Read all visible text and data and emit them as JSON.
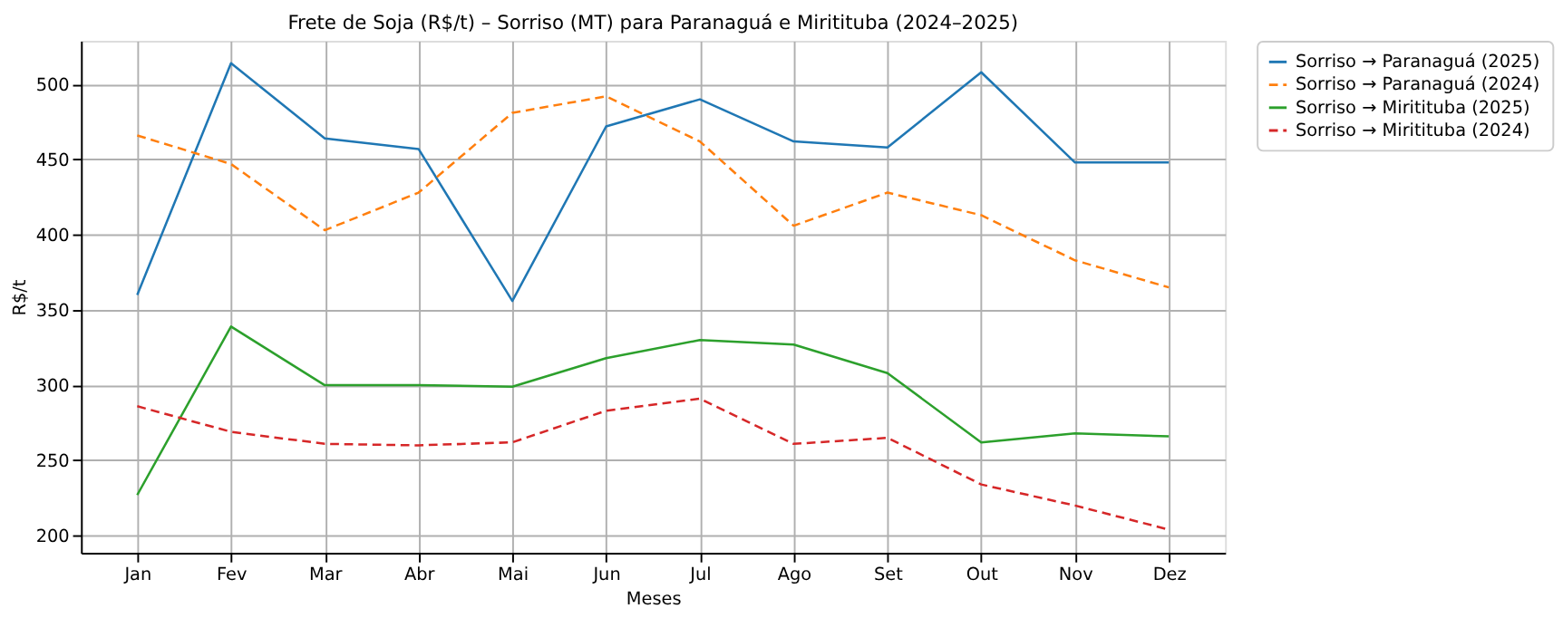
{
  "chart_data": {
    "type": "line",
    "title": "Frete de Soja (R$/t) – Sorriso (MT) para Paranaguá e Miritituba (2024–2025)",
    "xlabel": "Meses",
    "ylabel": "R$/t",
    "categories": [
      "Jan",
      "Fev",
      "Mar",
      "Abr",
      "Mai",
      "Jun",
      "Jul",
      "Ago",
      "Set",
      "Out",
      "Nov",
      "Dez"
    ],
    "ylim": [
      188.6,
      528.9
    ],
    "yticks": [
      200,
      250,
      300,
      350,
      400,
      450,
      500
    ],
    "grid": true,
    "legend": "right",
    "marker": "none",
    "series": [
      {
        "name": "Sorriso → Paranaguá (2025)",
        "color": "#1f77b4",
        "line_style": "solid",
        "values": [
          360,
          514,
          464,
          457,
          356,
          472,
          490,
          462,
          458,
          508,
          448,
          448
        ]
      },
      {
        "name": "Sorriso → Paranaguá (2024)",
        "color": "#ff7f0e",
        "line_style": "dashed",
        "values": [
          466,
          447,
          403,
          428,
          481,
          492,
          462,
          406,
          428,
          413,
          383,
          365
        ]
      },
      {
        "name": "Sorriso → Miritituba (2025)",
        "color": "#2ca02c",
        "line_style": "solid",
        "values": [
          227,
          339,
          300,
          300,
          299,
          318,
          330,
          327,
          308,
          262,
          268,
          266
        ]
      },
      {
        "name": "Sorriso → Miritituba (2024)",
        "color": "#d62728",
        "line_style": "dashed",
        "values": [
          286,
          269,
          261,
          260,
          262,
          283,
          291,
          261,
          265,
          234,
          220,
          204
        ]
      }
    ]
  }
}
